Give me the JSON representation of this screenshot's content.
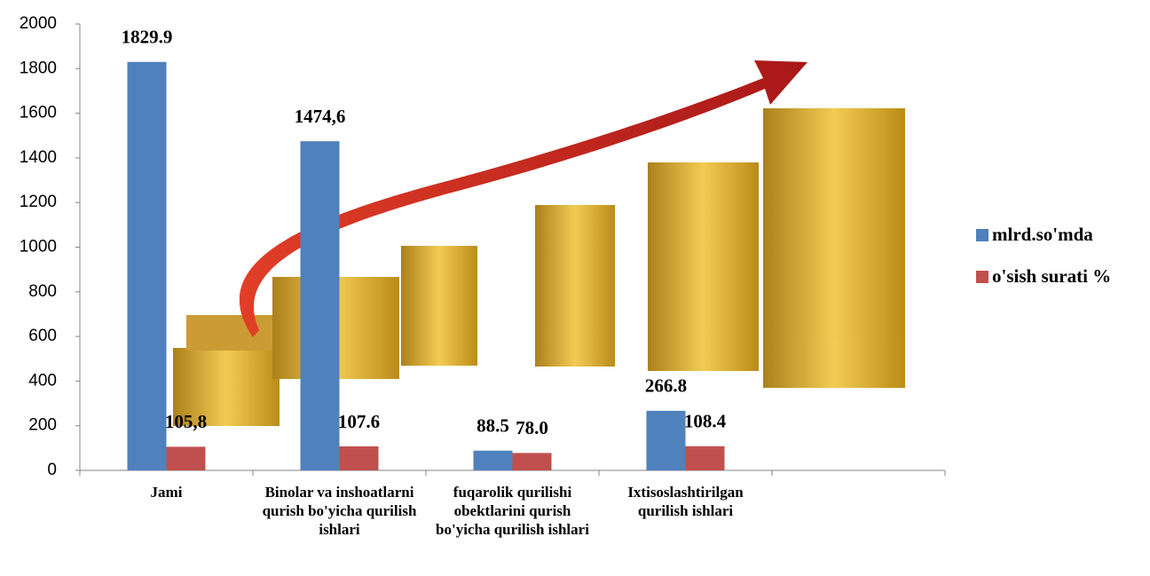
{
  "chart_data": {
    "type": "bar",
    "categories": [
      "Jami",
      "Binolar va inshoatlarni qurish bo'yicha qurilish ishlari",
      "fuqarolik qurilishi obektlarini qurish bo'yicha qurilish ishlari",
      "Ixtisoslashtirilgan qurilish ishlari",
      null
    ],
    "series": [
      {
        "name": "mlrd.so'mda",
        "color": "#4f81bd",
        "values": [
          1829.9,
          1474.6,
          88.5,
          266.8,
          null
        ],
        "value_labels": [
          "1829.9",
          "1474,6",
          "88.5",
          "266.8",
          null
        ]
      },
      {
        "name": "o'sish surati %",
        "color": "#c0504d",
        "values": [
          105.8,
          107.6,
          78.0,
          108.4,
          null
        ],
        "value_labels": [
          "105,8",
          "107.6",
          "78.0",
          "108.4",
          null
        ]
      }
    ],
    "ylim": [
      0,
      2000
    ],
    "yticks": [
      0,
      200,
      400,
      600,
      800,
      1000,
      1200,
      1400,
      1600,
      1800,
      2000
    ],
    "grid": false,
    "legend": "right"
  }
}
